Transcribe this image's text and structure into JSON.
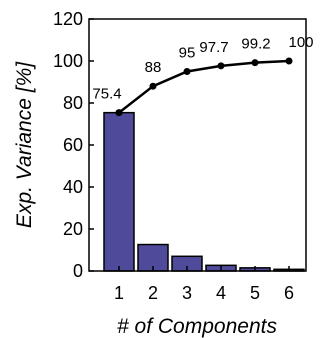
{
  "chart_data": {
    "type": "bar+line",
    "categories": [
      "1",
      "2",
      "3",
      "4",
      "5",
      "6"
    ],
    "series": [
      {
        "type": "bar",
        "values": [
          75.4,
          12.6,
          7.0,
          2.7,
          1.5,
          0.8
        ]
      },
      {
        "type": "line",
        "values": [
          75.4,
          88,
          95,
          97.7,
          99.2,
          100
        ],
        "labels": [
          "75.4",
          "88",
          "95",
          "97.7",
          "99.2",
          "100"
        ]
      }
    ],
    "xlabel": "# of Components",
    "ylabel": "Exp. Variance [%]",
    "ylim": [
      0,
      120
    ],
    "yticks": [
      "0",
      "20",
      "40",
      "60",
      "80",
      "100",
      "120"
    ],
    "grid": false,
    "colors": {
      "bar": "#4f4a9a",
      "line": "#000000"
    }
  }
}
